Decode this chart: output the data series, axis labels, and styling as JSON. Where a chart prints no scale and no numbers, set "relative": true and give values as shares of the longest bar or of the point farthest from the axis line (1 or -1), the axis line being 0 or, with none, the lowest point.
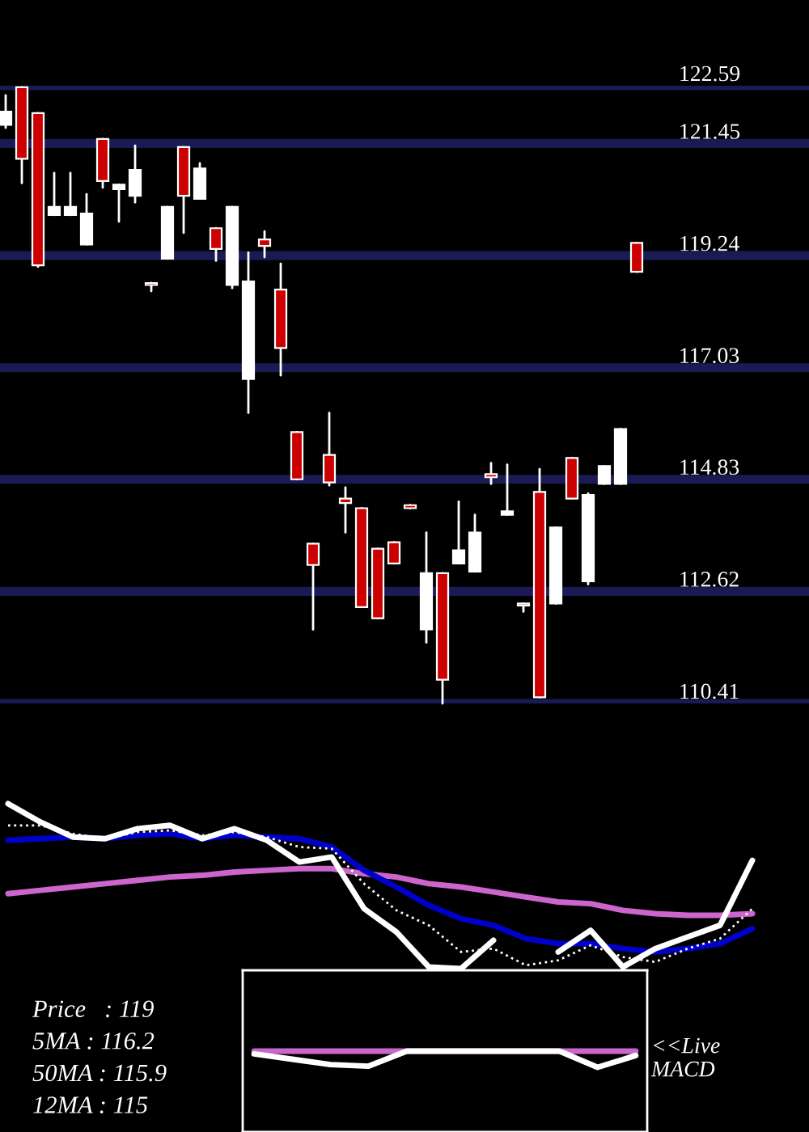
{
  "chart_data": [
    {
      "type": "candlestick",
      "categories": [
        null,
        null,
        null,
        null,
        null,
        null,
        null,
        null,
        null,
        null,
        null,
        null,
        null,
        null,
        null,
        null,
        null,
        null,
        null,
        null,
        null,
        null,
        null,
        null,
        null,
        null,
        null,
        null,
        null,
        null,
        null,
        null,
        null,
        null,
        null,
        null,
        null,
        null,
        null,
        null
      ],
      "ohlc": [
        [
          121.82,
          122.4,
          121.76,
          122.08
        ],
        [
          122.56,
          122.56,
          120.67,
          121.15
        ],
        [
          122.05,
          122.05,
          119.02,
          119.05
        ],
        [
          120.04,
          120.87,
          120.04,
          120.2
        ],
        [
          120.04,
          120.87,
          120.04,
          120.2
        ],
        [
          119.46,
          120.45,
          119.46,
          120.07
        ],
        [
          121.54,
          121.54,
          120.58,
          120.71
        ],
        [
          120.55,
          120.64,
          119.91,
          120.64
        ],
        [
          120.42,
          121.41,
          120.29,
          120.93
        ],
        [
          118.7,
          118.7,
          118.54,
          118.66
        ],
        [
          119.18,
          120.2,
          119.18,
          120.2
        ],
        [
          121.38,
          121.38,
          119.69,
          120.42
        ],
        [
          120.36,
          121.06,
          120.36,
          120.96
        ],
        [
          119.78,
          119.78,
          119.14,
          119.37
        ],
        [
          118.66,
          120.2,
          118.6,
          120.2
        ],
        [
          116.81,
          119.3,
          116.14,
          118.73
        ],
        [
          119.56,
          119.72,
          119.21,
          119.43
        ],
        [
          118.57,
          119.08,
          116.88,
          117.42
        ],
        [
          115.76,
          115.76,
          114.83,
          114.83
        ],
        [
          113.56,
          113.56,
          111.87,
          113.14
        ],
        [
          115.31,
          116.14,
          114.71,
          114.77
        ],
        [
          114.45,
          114.67,
          113.78,
          114.36
        ],
        [
          114.26,
          114.26,
          112.31,
          112.31
        ],
        [
          113.46,
          113.46,
          112.09,
          112.09
        ],
        [
          113.59,
          113.59,
          113.17,
          113.17
        ],
        [
          114.32,
          114.32,
          114.26,
          114.26
        ],
        [
          111.87,
          113.78,
          111.61,
          112.98
        ],
        [
          112.98,
          112.98,
          110.41,
          110.88
        ],
        [
          113.17,
          114.39,
          113.17,
          113.43
        ],
        [
          113.01,
          114.13,
          113.01,
          113.78
        ],
        [
          114.93,
          115.15,
          114.74,
          114.87
        ],
        [
          114.13,
          115.12,
          114.13,
          114.2
        ],
        [
          112.38,
          112.38,
          112.22,
          112.34
        ],
        [
          114.58,
          115.03,
          110.53,
          110.53
        ],
        [
          112.38,
          113.88,
          112.38,
          113.88
        ],
        [
          115.25,
          115.25,
          114.45,
          114.45
        ],
        [
          112.82,
          114.55,
          112.76,
          114.52
        ],
        [
          114.74,
          115.09,
          114.74,
          115.09
        ],
        [
          114.74,
          115.82,
          114.74,
          115.82
        ],
        [
          119.49,
          119.49,
          118.92,
          118.92
        ]
      ],
      "ylim": [
        110.41,
        122.59
      ],
      "yticks": [
        122.59,
        121.45,
        119.24,
        117.03,
        114.83,
        112.62,
        110.41
      ],
      "grid": "y",
      "legend": false
    },
    {
      "type": "line",
      "relative": true,
      "categories": [
        null,
        null,
        null,
        null,
        null,
        null,
        null,
        null,
        null,
        null,
        null,
        null,
        null,
        null,
        null,
        null,
        null,
        null,
        null,
        null,
        null,
        null,
        null,
        null
      ],
      "series": [
        {
          "color": "#cc66cc",
          "values": [
            0.46,
            0.48,
            0.5,
            0.52,
            0.54,
            0.56,
            0.57,
            0.59,
            0.6,
            0.61,
            0.61,
            0.58,
            0.56,
            0.52,
            0.5,
            0.47,
            0.44,
            0.41,
            0.4,
            0.36,
            0.34,
            0.33,
            0.33,
            0.34
          ]
        },
        {
          "color": "#0000cc",
          "values": [
            0.78,
            0.79,
            0.8,
            0.79,
            0.81,
            0.82,
            0.79,
            0.81,
            0.8,
            0.79,
            0.74,
            0.6,
            0.5,
            0.39,
            0.31,
            0.27,
            0.19,
            0.16,
            0.16,
            0.13,
            0.11,
            0.13,
            0.16,
            0.25
          ]
        },
        {
          "color": "#ffffff",
          "line_style": "dotted",
          "values": [
            0.87,
            0.87,
            0.82,
            0.79,
            0.83,
            0.84,
            0.81,
            0.83,
            0.8,
            0.74,
            0.73,
            0.52,
            0.36,
            0.27,
            0.11,
            0.13,
            0.03,
            0.06,
            0.15,
            0.08,
            0.05,
            0.13,
            0.19,
            0.37
          ]
        },
        {
          "color": "#ffffff",
          "values": [
            1.0,
            0.89,
            0.8,
            0.79,
            0.85,
            0.87,
            0.79,
            0.85,
            0.78,
            0.65,
            0.68,
            0.37,
            0.23,
            0.02,
            0.01,
            0.18,
            null,
            0.11,
            0.24,
            0.02,
            0.13,
            0.2,
            0.27,
            0.66
          ]
        }
      ],
      "annotations": [
        "Price   : 119",
        "5MA : 116.2",
        "50MA : 115.9",
        "12MA : 115"
      ],
      "legend": false
    },
    {
      "type": "line",
      "relative": true,
      "categories": [
        null,
        null,
        null,
        null,
        null,
        null,
        null,
        null,
        null,
        null,
        null
      ],
      "series": [
        {
          "color": "#cc66cc",
          "values": [
            1,
            1,
            1,
            1,
            1,
            1,
            1,
            1,
            1,
            1,
            1
          ]
        },
        {
          "color": "#ffffff",
          "values": [
            0.83,
            0.5,
            0.17,
            0.07,
            1,
            1,
            1,
            1,
            1,
            0,
            0.73
          ]
        }
      ],
      "annotations": [
        "<<Live\nMACD"
      ],
      "legend": false
    }
  ]
}
